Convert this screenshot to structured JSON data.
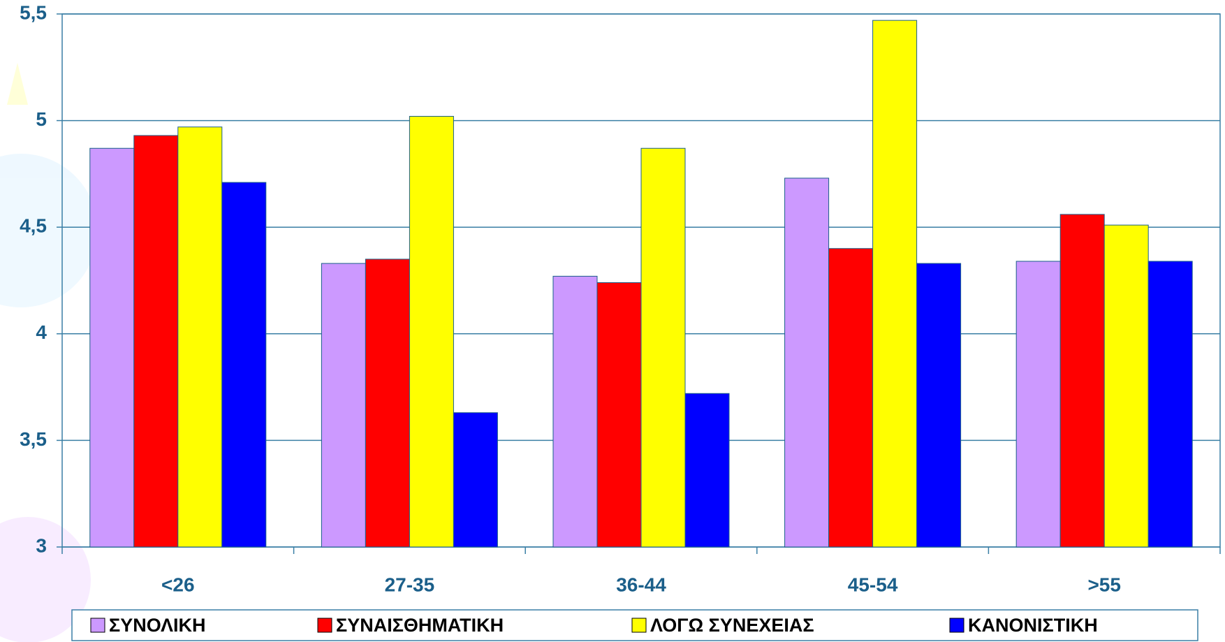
{
  "chart_data": {
    "type": "bar",
    "categories": [
      "<26",
      "27-35",
      "36-44",
      "45-54",
      ">55"
    ],
    "series": [
      {
        "name": "ΣΥΝΟΛΙΚΗ",
        "color": "#cc99ff",
        "values": [
          4.87,
          4.33,
          4.27,
          4.73,
          4.34
        ]
      },
      {
        "name": "ΣΥΝΑΙΣΘΗΜΑΤΙΚΗ",
        "color": "#ff0000",
        "values": [
          4.93,
          4.35,
          4.24,
          4.4,
          4.56
        ]
      },
      {
        "name": "ΛΟΓΩ ΣΥΝΕΧΕΙΑΣ",
        "color": "#ffff00",
        "values": [
          4.97,
          5.02,
          4.87,
          5.47,
          4.51
        ]
      },
      {
        "name": "ΚΑΝΟΝΙΣΤΙΚΗ",
        "color": "#0000ff",
        "values": [
          4.71,
          3.63,
          3.72,
          4.33,
          4.34
        ]
      }
    ],
    "ylim": [
      3,
      5.5
    ],
    "yticks": [
      3,
      {
        "value": 3.5,
        "label": "3,5"
      },
      4,
      {
        "value": 4.5,
        "label": "4,5"
      },
      5,
      {
        "value": 5.5,
        "label": "5,5"
      }
    ],
    "grid": true,
    "legend": "bottom"
  }
}
